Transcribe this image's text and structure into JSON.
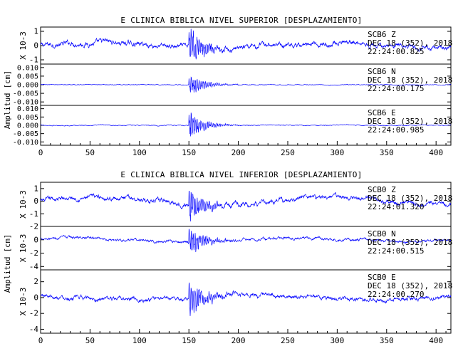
{
  "chart_data": [
    {
      "type": "line",
      "title": "E CLINICA BIBLICA NIVEL SUPERIOR [DESPLAZAMIENTO]",
      "ylabel": "Amplitud [cm]",
      "xlim": [
        0,
        415
      ],
      "x_ticks": [
        "0",
        "50",
        "100",
        "150",
        "200",
        "250",
        "300",
        "350",
        "400"
      ],
      "traces": [
        {
          "station": "SCB6",
          "component": "Z",
          "date": "DEC 18 (352), 2018",
          "time": "22:24:00.825",
          "scale_label": "X 10-3",
          "ylim": [
            -1.3,
            1.3
          ],
          "y_ticks": [
            "1",
            "0",
            "-1"
          ],
          "onset": 150,
          "noise": 0.35,
          "burst": 1.2,
          "trend": 0.2
        },
        {
          "station": "SCB6",
          "component": "N",
          "date": "DEC 18 (352), 2018",
          "time": "22:24:00.175",
          "scale_label": "",
          "ylim": [
            -0.012,
            0.012
          ],
          "y_ticks": [
            "0.010",
            "0.005",
            "0.000",
            "-0.005",
            "-0.010"
          ],
          "onset": 150,
          "noise": 0.0004,
          "burst": 0.006,
          "trend": 0.0
        },
        {
          "station": "SCB6",
          "component": "E",
          "date": "DEC 18 (352), 2018",
          "time": "22:24:00.985",
          "scale_label": "",
          "ylim": [
            -0.012,
            0.012
          ],
          "y_ticks": [
            "0.010",
            "0.005",
            "0.000",
            "-0.005",
            "-0.010"
          ],
          "onset": 150,
          "noise": 0.0005,
          "burst": 0.008,
          "trend": 0.0
        }
      ]
    },
    {
      "type": "line",
      "title": "E CLINICA BIBLICA NIVEL INFERIOR [DESPLAZAMIENTO]",
      "ylabel": "Amplitud [cm]",
      "xlim": [
        0,
        415
      ],
      "x_ticks": [
        "0",
        "50",
        "100",
        "150",
        "200",
        "250",
        "300",
        "350",
        "400"
      ],
      "traces": [
        {
          "station": "SCB0",
          "component": "Z",
          "date": "DEC 18 (352), 2018",
          "time": "22:24:01.320",
          "scale_label": "X 10-3",
          "ylim": [
            -2,
            1.5
          ],
          "y_ticks": [
            "1",
            "0",
            "-1",
            "-2"
          ],
          "onset": 150,
          "noise": 0.35,
          "burst": 1.3,
          "trend": 0.3
        },
        {
          "station": "SCB0",
          "component": "N",
          "date": "DEC 18 (352), 2018",
          "time": "22:24:00.515",
          "scale_label": "X 10-3",
          "ylim": [
            -4.5,
            2
          ],
          "y_ticks": [
            "0",
            "-2",
            "-4"
          ],
          "onset": 150,
          "noise": 0.4,
          "burst": 2.0,
          "trend": 0.3
        },
        {
          "station": "SCB0",
          "component": "E",
          "date": "DEC 18 (352), 2018",
          "time": "22:24:00.270",
          "scale_label": "X 10-3",
          "ylim": [
            -4.5,
            3.5
          ],
          "y_ticks": [
            "2",
            "0",
            "-2",
            "-4"
          ],
          "onset": 150,
          "noise": 0.5,
          "burst": 2.2,
          "trend": 0.3
        }
      ]
    }
  ],
  "colors": {
    "trace": "#0000ff",
    "axis": "#000000"
  }
}
